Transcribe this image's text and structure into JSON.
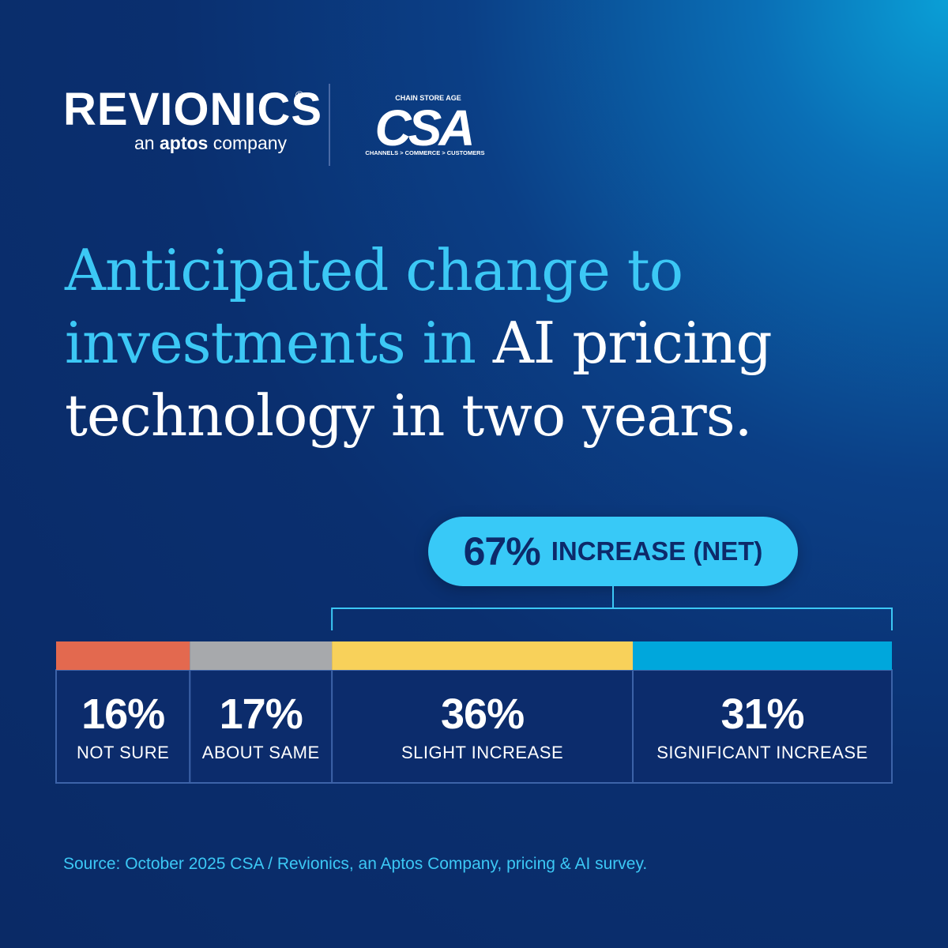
{
  "logos": {
    "revionics_word": "REVIONICS",
    "revionics_reg": "®",
    "revionics_sub_pre": "an ",
    "revionics_sub_brand": "aptos",
    "revionics_sub_post": " company",
    "csa_top": "CHAIN STORE AGE",
    "csa_mark": "CSA",
    "csa_tagline": "CHANNELS > COMMERCE > CUSTOMERS"
  },
  "title": {
    "part1": "Anticipated change to investments in",
    "part2": " AI pricing technology in two years."
  },
  "callout": {
    "value": "67%",
    "label": "INCREASE (NET)"
  },
  "source": "Source: October 2025 CSA / Revionics, an Aptos Company, pricing & AI survey.",
  "colors": {
    "highlight": "#3cc8f5",
    "not_sure": "#e3694f",
    "about_same": "#a7a9ac",
    "slight_increase": "#f8d15a",
    "significant_increase": "#00a7dc"
  },
  "chart_data": {
    "type": "bar",
    "orientation": "stacked-horizontal",
    "categories": [
      "NOT SURE",
      "ABOUT SAME",
      "SLIGHT INCREASE",
      "SIGNIFICANT INCREASE"
    ],
    "values": [
      16,
      17,
      36,
      31
    ],
    "labels": [
      "16%",
      "17%",
      "36%",
      "31%"
    ],
    "colors": [
      "#e3694f",
      "#a7a9ac",
      "#f8d15a",
      "#00a7dc"
    ],
    "title": "Anticipated change to investments in AI pricing technology in two years.",
    "annotation": "67% INCREASE (NET)"
  }
}
